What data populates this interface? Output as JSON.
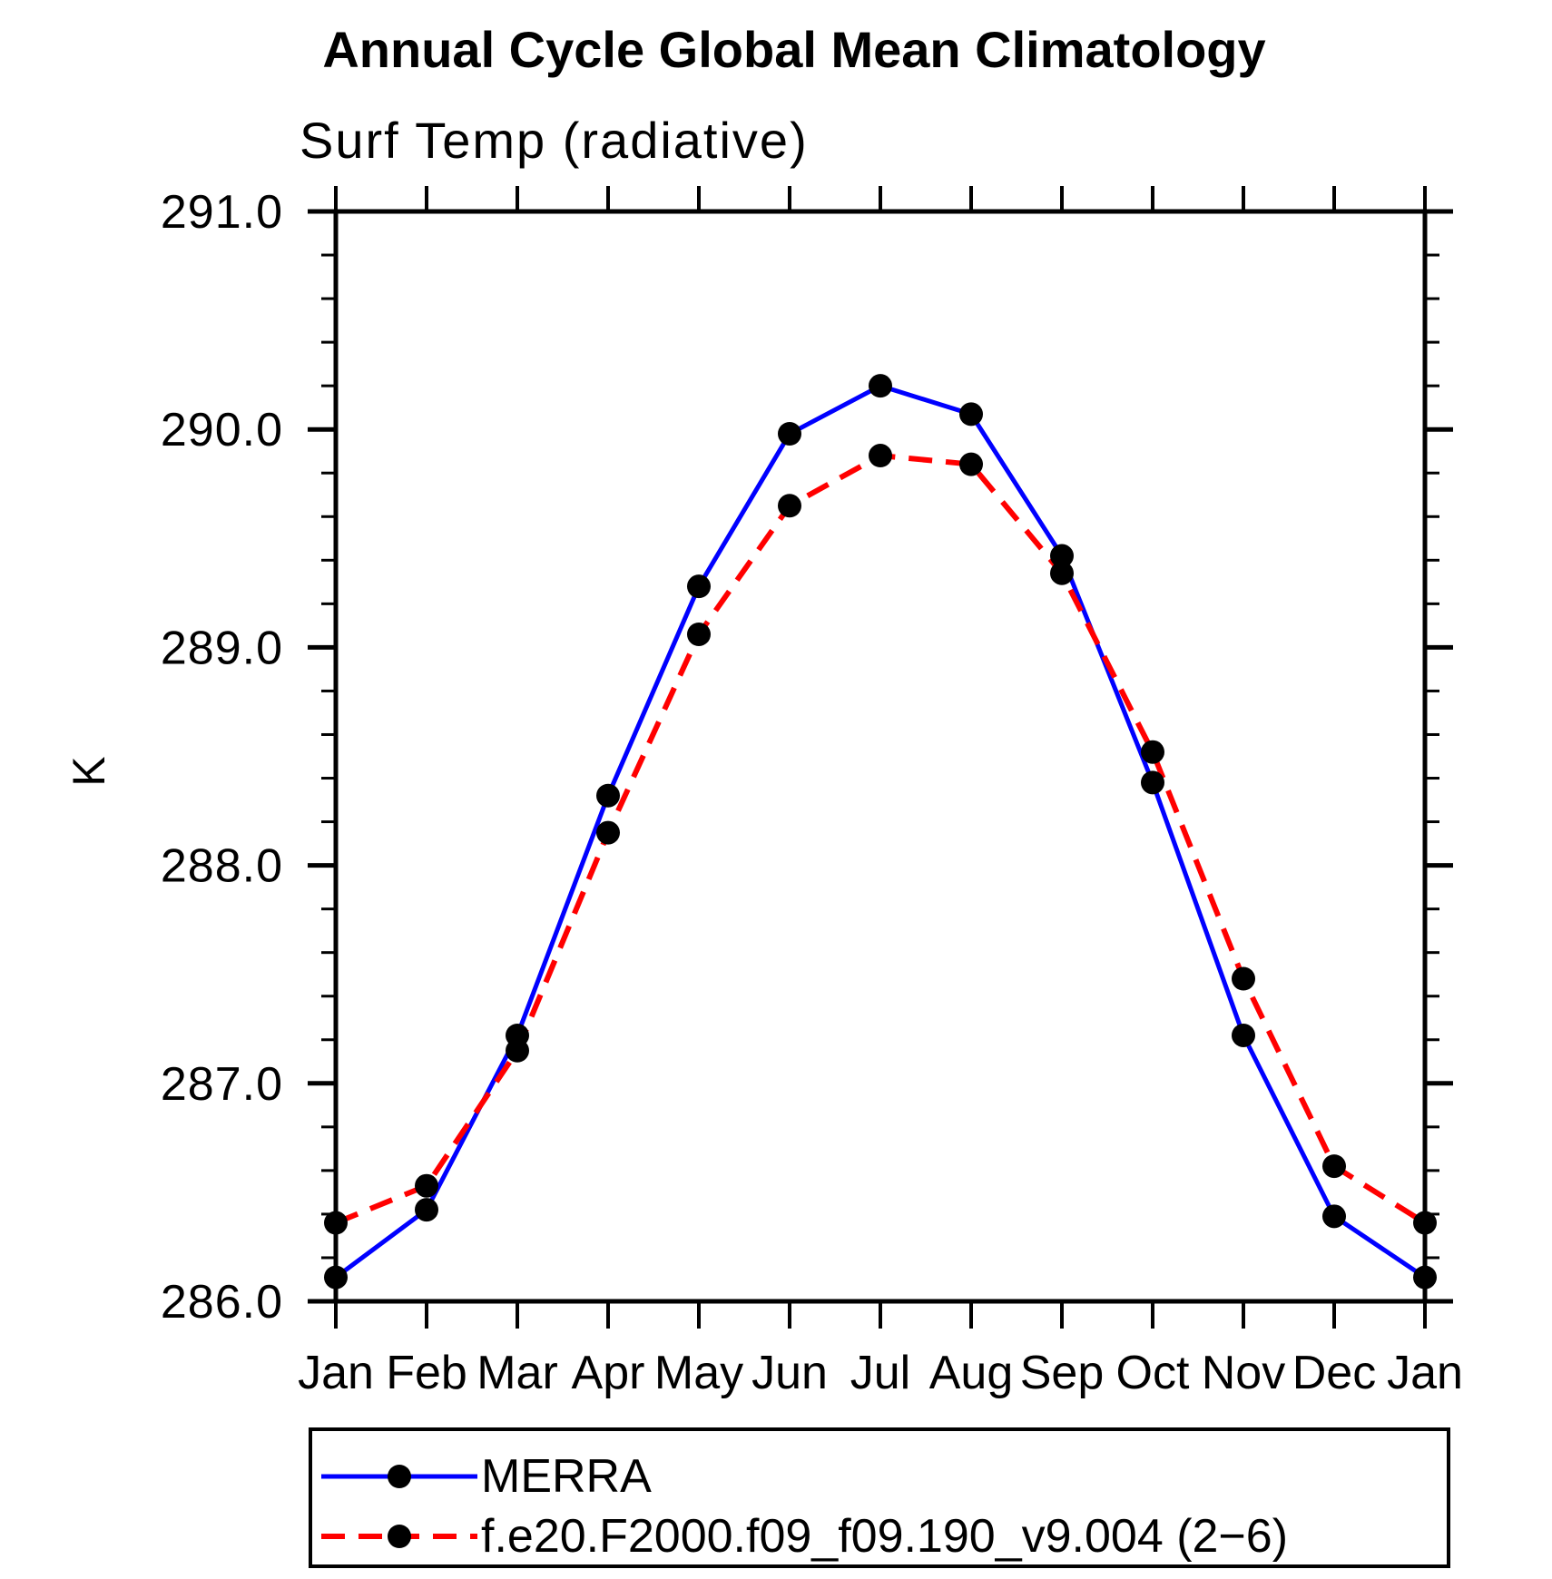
{
  "chart_data": {
    "type": "line",
    "title": "Annual Cycle Global Mean Climatology",
    "subtitle": "Surf Temp (radiative)",
    "ylabel": "K",
    "x_categories": [
      "Jan",
      "Feb",
      "Mar",
      "Apr",
      "May",
      "Jun",
      "Jul",
      "Aug",
      "Sep",
      "Oct",
      "Nov",
      "Dec",
      "Jan"
    ],
    "ylim": [
      286.0,
      291.0
    ],
    "ytick_major_labels": [
      "286.0",
      "287.0",
      "288.0",
      "289.0",
      "290.0",
      "291.0"
    ],
    "ytick_major_step": 1.0,
    "ytick_minor_step": 0.2,
    "grid": "off",
    "legend_position": "bottom-left-box",
    "axis_color": "#000000",
    "marker_color": "#000000",
    "series": [
      {
        "name": "MERRA",
        "color": "#0000ff",
        "style": "solid",
        "marker": "circle",
        "values": [
          286.11,
          286.42,
          287.22,
          288.32,
          289.28,
          289.98,
          290.2,
          290.07,
          289.42,
          288.38,
          287.22,
          286.39,
          286.11
        ]
      },
      {
        "name": "f.e20.F2000.f09_f09.190_v9.004 (2−6)",
        "color": "#ff0000",
        "style": "dashed",
        "marker": "circle",
        "values": [
          286.36,
          286.53,
          287.15,
          288.15,
          289.06,
          289.65,
          289.88,
          289.84,
          289.34,
          288.52,
          287.48,
          286.62,
          286.36
        ]
      }
    ]
  }
}
